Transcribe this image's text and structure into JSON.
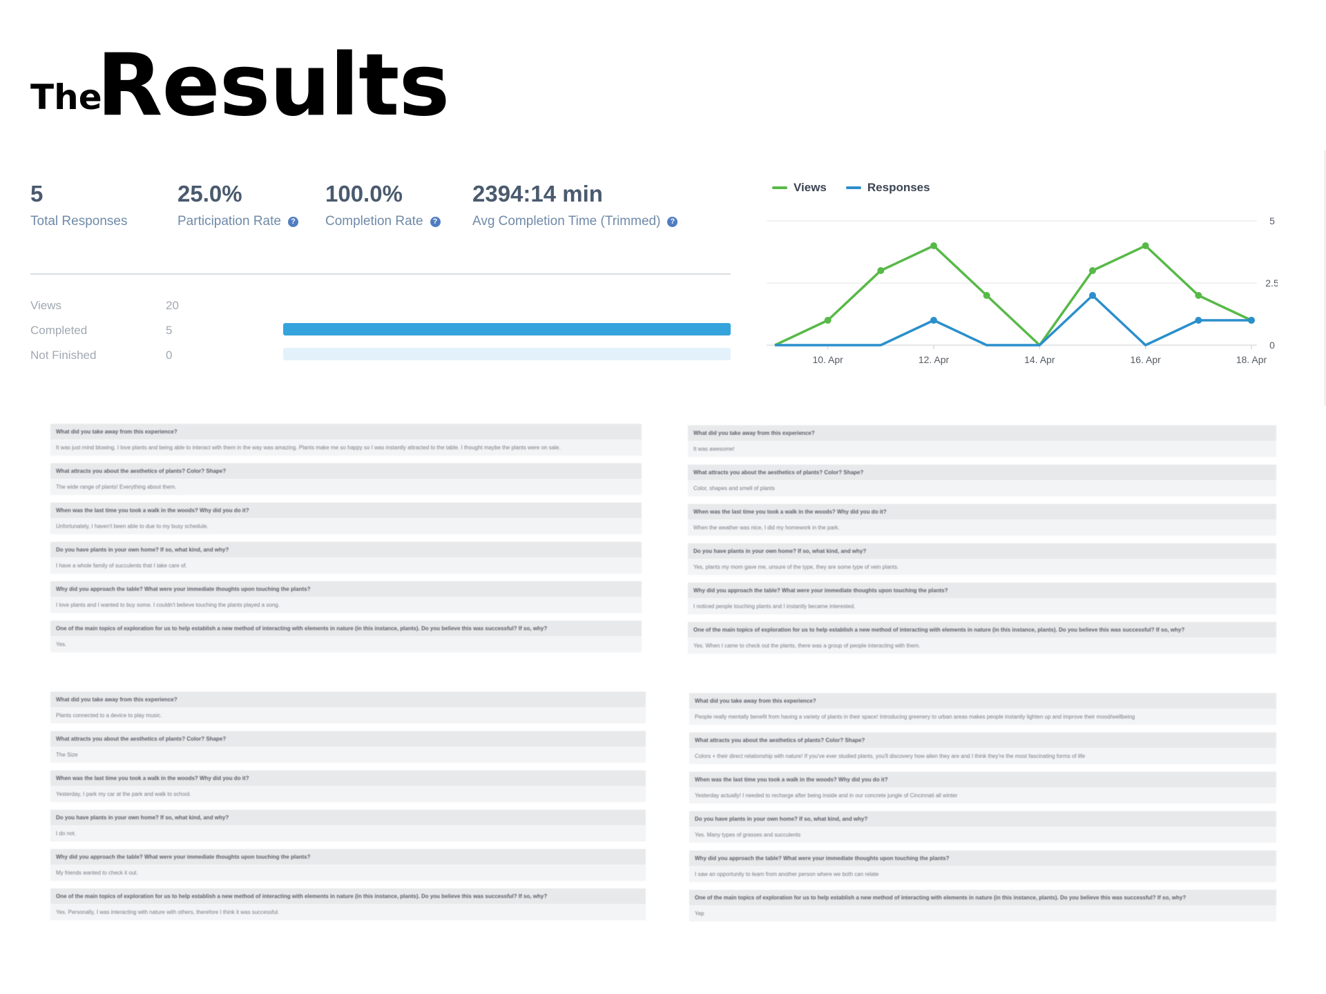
{
  "heading": {
    "the": "The",
    "results": "Results"
  },
  "stats": [
    {
      "value": "5",
      "label": "Total Responses",
      "help": false
    },
    {
      "value": "25.0%",
      "label": "Participation Rate",
      "help": true
    },
    {
      "value": "100.0%",
      "label": "Completion Rate",
      "help": true
    },
    {
      "value": "2394:14 min",
      "label": "Avg Completion Time (Trimmed)",
      "help": true
    }
  ],
  "breakdown": [
    {
      "label": "Views",
      "value": "20"
    },
    {
      "label": "Completed",
      "value": "5",
      "fill": 1.0
    },
    {
      "label": "Not Finished",
      "value": "0",
      "fill": 0.0
    }
  ],
  "colors": {
    "views": "#57b947",
    "responses": "#2a8fcb",
    "completed_bar": "#35a3dc",
    "unfinished_bar": "#e3f1fa"
  },
  "chart_data": {
    "type": "line",
    "x": [
      "9. Apr",
      "10. Apr",
      "11. Apr",
      "12. Apr",
      "13. Apr",
      "14. Apr",
      "15. Apr",
      "16. Apr",
      "17. Apr",
      "18. Apr"
    ],
    "xticks": [
      "10. Apr",
      "12. Apr",
      "14. Apr",
      "16. Apr",
      "18. Apr"
    ],
    "yticks": [
      "0",
      "2.5",
      "5"
    ],
    "ylim": [
      0,
      5
    ],
    "grid": true,
    "legend_position": "top-left",
    "series": [
      {
        "name": "Views",
        "values": [
          0,
          1,
          3,
          4,
          2,
          0,
          3,
          4,
          2,
          1
        ]
      },
      {
        "name": "Responses",
        "values": [
          0,
          0,
          0,
          1,
          0,
          0,
          2,
          0,
          1,
          1
        ]
      }
    ]
  },
  "panels": [
    {
      "qa": [
        {
          "q": "What did you take away from this experience?",
          "a": "It was just mind blowing. I love plants and being able to interact with them in the way was amazing. Plants make me so happy so I was instantly attracted to the table. I thought maybe the plants were on sale."
        },
        {
          "q": "What attracts you about the aesthetics of plants? Color? Shape?",
          "a": "The wide range of plants! Everything about them."
        },
        {
          "q": "When was the last time you took a walk in the woods? Why did you do it?",
          "a": "Unfortunately, I haven't been able to due to my busy schedule."
        },
        {
          "q": "Do you have plants in your own home? If so, what kind, and why?",
          "a": "I have a whole family of succulents that I take care of."
        },
        {
          "q": "Why did you approach the table? What were your immediate thoughts upon touching the plants?",
          "a": "I love plants and I wanted to buy some. I couldn't believe touching the plants played a song."
        },
        {
          "q": "One of the main topics of exploration for us to help establish a new method of interacting with elements in nature (in this instance, plants). Do you believe this was successful? If so, why?",
          "a": "Yes."
        }
      ]
    },
    {
      "qa": [
        {
          "q": "What did you take away from this experience?",
          "a": "It was awesome!"
        },
        {
          "q": "What attracts you about the aesthetics of plants? Color? Shape?",
          "a": "Color, shapes and smell of plants"
        },
        {
          "q": "When was the last time you took a walk in the woods? Why did you do it?",
          "a": "When the weather was nice, I did my homework in the park."
        },
        {
          "q": "Do you have plants in your own home? If so, what kind, and why?",
          "a": "Yes, plants my mom gave me, unsure of the type, they are some type of vein plants."
        },
        {
          "q": "Why did you approach the table? What were your immediate thoughts upon touching the plants?",
          "a": "I noticed people touching plants and I instantly became interested."
        },
        {
          "q": "One of the main topics of exploration for us to help establish a new method of interacting with elements in nature (in this instance, plants). Do you believe this was successful? If so, why?",
          "a": "Yes. When I came to check out the plants, there was a group of people interacting with them."
        }
      ]
    },
    {
      "qa": [
        {
          "q": "What did you take away from this experience?",
          "a": "Plants connected to a device to play music."
        },
        {
          "q": "What attracts you about the aesthetics of plants? Color? Shape?",
          "a": "The Size"
        },
        {
          "q": "When was the last time you took a walk in the woods? Why did you do it?",
          "a": "Yesterday, I park my car at the park and walk to school."
        },
        {
          "q": "Do you have plants in your own home? If so, what kind, and why?",
          "a": "I do not."
        },
        {
          "q": "Why did you approach the table? What were your immediate thoughts upon touching the plants?",
          "a": "My friends wanted to check it out."
        },
        {
          "q": "One of the main topics of exploration for us to help establish a new method of interacting with elements in nature (in this instance, plants). Do you believe this was successful? If so, why?",
          "a": "Yes. Personally, I was interacting with nature with others, therefore I think it was successful."
        }
      ]
    },
    {
      "qa": [
        {
          "q": "What did you take away from this experience?",
          "a": "People really mentally benefit from having a variety of plants in their space! Introducing greenery to urban areas makes people instantly lighten up and improve their mood/wellbeing"
        },
        {
          "q": "What attracts you about the aesthetics of plants? Color? Shape?",
          "a": "Colors + their direct relationship with nature! If you've ever studied plants, you'll discovery how alien they are and I think they're the most fascinating forms of life"
        },
        {
          "q": "When was the last time you took a walk in the woods? Why did you do it?",
          "a": "Yesterday actually! I needed to recharge after being inside and in our concrete jungle of Cincinnati all winter"
        },
        {
          "q": "Do you have plants in your own home? If so, what kind, and why?",
          "a": "Yes. Many types of grasses and succulents"
        },
        {
          "q": "Why did you approach the table? What were your immediate thoughts upon touching the plants?",
          "a": "I saw an opportunity to learn from another person where we both can relate"
        },
        {
          "q": "One of the main topics of exploration for us to help establish a new method of interacting with elements in nature (in this instance, plants). Do you believe this was successful? If so, why?",
          "a": "Yep"
        }
      ]
    }
  ]
}
